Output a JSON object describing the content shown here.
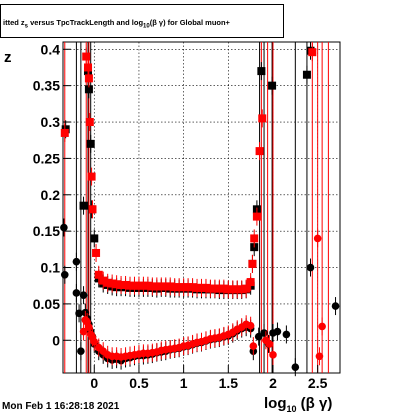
{
  "title": "itted  z_{s} versus TpcTrackLength and log_{10}(βγ) for Global muon+",
  "datestamp": "Mon Feb  1 16:28:18 2021",
  "chart_data": {
    "type": "scatter",
    "title": "itted  z_{s} versus TpcTrackLength and log_{10}(βγ) for Global muon+",
    "xlabel": "log10(β γ)",
    "ylabel": "z",
    "xlim": [
      -0.35,
      2.75
    ],
    "ylim": [
      -0.045,
      0.41
    ],
    "x_ticks": [
      {
        "v": 0,
        "label": "0"
      },
      {
        "v": 0.5,
        "label": "0.5"
      },
      {
        "v": 1,
        "label": "1"
      },
      {
        "v": 1.5,
        "label": "1.5"
      },
      {
        "v": 2,
        "label": "2"
      },
      {
        "v": 2.5,
        "label": "2.5"
      }
    ],
    "y_ticks": [
      {
        "v": 0,
        "label": "0"
      },
      {
        "v": 0.05,
        "label": "0.05"
      },
      {
        "v": 0.1,
        "label": "0.1"
      },
      {
        "v": 0.15,
        "label": "0.15"
      },
      {
        "v": 0.2,
        "label": "0.2"
      },
      {
        "v": 0.25,
        "label": "0.25"
      },
      {
        "v": 0.3,
        "label": "0.3"
      },
      {
        "v": 0.35,
        "label": "0.35"
      },
      {
        "v": 0.4,
        "label": "0.4"
      }
    ],
    "grid": true,
    "series": [
      {
        "marker": "square",
        "color": "#000000",
        "points": [
          [
            -0.32,
            0.29
          ],
          [
            -0.12,
            0.185
          ],
          [
            -0.07,
            0.37
          ],
          [
            -0.06,
            0.345
          ],
          [
            -0.04,
            0.27
          ],
          [
            -0.03,
            0.18
          ],
          [
            0.0,
            0.14
          ],
          [
            0.05,
            0.085
          ],
          [
            0.1,
            0.078
          ],
          [
            0.15,
            0.076
          ],
          [
            0.2,
            0.074
          ],
          [
            0.25,
            0.073
          ],
          [
            0.3,
            0.073
          ],
          [
            0.35,
            0.073
          ],
          [
            0.4,
            0.072
          ],
          [
            0.45,
            0.072
          ],
          [
            0.5,
            0.072
          ],
          [
            0.55,
            0.072
          ],
          [
            0.6,
            0.072
          ],
          [
            0.65,
            0.072
          ],
          [
            0.7,
            0.071
          ],
          [
            0.75,
            0.072
          ],
          [
            0.8,
            0.072
          ],
          [
            0.85,
            0.071
          ],
          [
            0.9,
            0.071
          ],
          [
            0.95,
            0.071
          ],
          [
            1.0,
            0.071
          ],
          [
            1.05,
            0.071
          ],
          [
            1.1,
            0.071
          ],
          [
            1.15,
            0.07
          ],
          [
            1.2,
            0.07
          ],
          [
            1.25,
            0.07
          ],
          [
            1.3,
            0.07
          ],
          [
            1.35,
            0.07
          ],
          [
            1.4,
            0.069
          ],
          [
            1.45,
            0.069
          ],
          [
            1.5,
            0.069
          ],
          [
            1.55,
            0.069
          ],
          [
            1.6,
            0.069
          ],
          [
            1.65,
            0.069
          ],
          [
            1.7,
            0.07
          ],
          [
            1.75,
            0.075
          ],
          [
            1.77,
            0.105
          ],
          [
            1.79,
            0.128
          ],
          [
            1.82,
            0.18
          ],
          [
            1.87,
            0.37
          ],
          [
            1.99,
            0.35
          ],
          [
            2.38,
            0.365
          ],
          [
            2.42,
            0.398
          ]
        ]
      },
      {
        "marker": "square",
        "color": "#ff0000",
        "points": [
          [
            -0.33,
            0.285
          ],
          [
            -0.09,
            0.39
          ],
          [
            -0.07,
            0.375
          ],
          [
            -0.06,
            0.36
          ],
          [
            -0.05,
            0.3
          ],
          [
            -0.03,
            0.225
          ],
          [
            -0.02,
            0.18
          ],
          [
            0.02,
            0.12
          ],
          [
            0.05,
            0.09
          ],
          [
            0.1,
            0.082
          ],
          [
            0.15,
            0.079
          ],
          [
            0.2,
            0.078
          ],
          [
            0.25,
            0.077
          ],
          [
            0.3,
            0.076
          ],
          [
            0.35,
            0.076
          ],
          [
            0.4,
            0.075
          ],
          [
            0.45,
            0.075
          ],
          [
            0.5,
            0.075
          ],
          [
            0.55,
            0.075
          ],
          [
            0.6,
            0.075
          ],
          [
            0.65,
            0.074
          ],
          [
            0.7,
            0.074
          ],
          [
            0.75,
            0.074
          ],
          [
            0.8,
            0.074
          ],
          [
            0.85,
            0.074
          ],
          [
            0.9,
            0.073
          ],
          [
            0.95,
            0.073
          ],
          [
            1.0,
            0.073
          ],
          [
            1.05,
            0.073
          ],
          [
            1.1,
            0.073
          ],
          [
            1.15,
            0.072
          ],
          [
            1.2,
            0.072
          ],
          [
            1.25,
            0.072
          ],
          [
            1.3,
            0.071
          ],
          [
            1.35,
            0.071
          ],
          [
            1.4,
            0.071
          ],
          [
            1.45,
            0.071
          ],
          [
            1.5,
            0.07
          ],
          [
            1.55,
            0.07
          ],
          [
            1.6,
            0.07
          ],
          [
            1.65,
            0.07
          ],
          [
            1.7,
            0.071
          ],
          [
            1.75,
            0.08
          ],
          [
            1.77,
            0.105
          ],
          [
            1.79,
            0.14
          ],
          [
            1.82,
            0.17
          ],
          [
            1.85,
            0.26
          ],
          [
            1.88,
            0.305
          ],
          [
            2.44,
            0.396
          ]
        ]
      },
      {
        "marker": "circle",
        "color": "#000000",
        "points": [
          [
            -0.34,
            0.155
          ],
          [
            -0.33,
            0.09
          ],
          [
            -0.2,
            0.108
          ],
          [
            -0.2,
            0.065
          ],
          [
            -0.17,
            0.037
          ],
          [
            -0.15,
            -0.015
          ],
          [
            -0.12,
            0.062
          ],
          [
            -0.1,
            0.038
          ],
          [
            -0.08,
            0.03
          ],
          [
            -0.06,
            0.022
          ],
          [
            -0.04,
            0.012
          ],
          [
            -0.02,
            0.005
          ],
          [
            0.0,
            -0.005
          ],
          [
            0.05,
            -0.015
          ],
          [
            0.1,
            -0.02
          ],
          [
            0.15,
            -0.025
          ],
          [
            0.2,
            -0.027
          ],
          [
            0.25,
            -0.026
          ],
          [
            0.3,
            -0.028
          ],
          [
            0.35,
            -0.025
          ],
          [
            0.4,
            -0.024
          ],
          [
            0.45,
            -0.022
          ],
          [
            0.5,
            -0.021
          ],
          [
            0.55,
            -0.021
          ],
          [
            0.6,
            -0.02
          ],
          [
            0.65,
            -0.019
          ],
          [
            0.7,
            -0.017
          ],
          [
            0.75,
            -0.016
          ],
          [
            0.8,
            -0.015
          ],
          [
            0.85,
            -0.013
          ],
          [
            0.9,
            -0.012
          ],
          [
            0.95,
            -0.011
          ],
          [
            1.0,
            -0.009
          ],
          [
            1.05,
            -0.008
          ],
          [
            1.1,
            -0.006
          ],
          [
            1.15,
            -0.004
          ],
          [
            1.2,
            -0.003
          ],
          [
            1.25,
            -0.001
          ],
          [
            1.3,
            0.001
          ],
          [
            1.35,
            0.002
          ],
          [
            1.4,
            0.003
          ],
          [
            1.45,
            0.005
          ],
          [
            1.5,
            0.006
          ],
          [
            1.55,
            0.009
          ],
          [
            1.6,
            0.013
          ],
          [
            1.65,
            0.016
          ],
          [
            1.7,
            0.018
          ],
          [
            1.75,
            0.016
          ],
          [
            1.78,
            -0.015
          ],
          [
            1.84,
            0.005
          ],
          [
            1.9,
            0.01
          ],
          [
            1.95,
            -0.005
          ],
          [
            2.0,
            0.01
          ],
          [
            2.05,
            0.012
          ],
          [
            2.15,
            0.008
          ],
          [
            2.25,
            -0.037
          ],
          [
            2.42,
            0.1
          ],
          [
            2.7,
            0.047
          ]
        ]
      },
      {
        "marker": "circle",
        "color": "#ff0000",
        "points": [
          [
            -0.12,
            0.012
          ],
          [
            -0.1,
            0.028
          ],
          [
            -0.08,
            0.025
          ],
          [
            -0.06,
            0.018
          ],
          [
            -0.04,
            0.008
          ],
          [
            -0.02,
            0.004
          ],
          [
            0.0,
            -0.002
          ],
          [
            0.05,
            -0.01
          ],
          [
            0.1,
            -0.015
          ],
          [
            0.15,
            -0.02
          ],
          [
            0.2,
            -0.022
          ],
          [
            0.25,
            -0.022
          ],
          [
            0.3,
            -0.023
          ],
          [
            0.35,
            -0.022
          ],
          [
            0.4,
            -0.021
          ],
          [
            0.45,
            -0.02
          ],
          [
            0.5,
            -0.019
          ],
          [
            0.55,
            -0.018
          ],
          [
            0.6,
            -0.018
          ],
          [
            0.65,
            -0.017
          ],
          [
            0.7,
            -0.016
          ],
          [
            0.75,
            -0.014
          ],
          [
            0.8,
            -0.013
          ],
          [
            0.85,
            -0.012
          ],
          [
            0.9,
            -0.011
          ],
          [
            0.95,
            -0.01
          ],
          [
            1.0,
            -0.008
          ],
          [
            1.05,
            -0.007
          ],
          [
            1.1,
            -0.005
          ],
          [
            1.15,
            -0.003
          ],
          [
            1.2,
            -0.002
          ],
          [
            1.25,
            0.0
          ],
          [
            1.3,
            0.002
          ],
          [
            1.35,
            0.003
          ],
          [
            1.4,
            0.004
          ],
          [
            1.45,
            0.006
          ],
          [
            1.5,
            0.008
          ],
          [
            1.55,
            0.011
          ],
          [
            1.6,
            0.015
          ],
          [
            1.65,
            0.018
          ],
          [
            1.7,
            0.022
          ],
          [
            1.75,
            0.02
          ],
          [
            1.78,
            -0.008
          ],
          [
            1.92,
            0.0
          ],
          [
            1.96,
            -0.005
          ],
          [
            2.0,
            -0.02
          ],
          [
            2.5,
            0.14
          ],
          [
            2.52,
            -0.022
          ],
          [
            2.55,
            0.019
          ]
        ]
      }
    ],
    "vertical_spans": [
      {
        "x": -0.33,
        "color": "#ff0000"
      },
      {
        "x": -0.2,
        "color": "#000000"
      },
      {
        "x": -0.15,
        "color": "#000000"
      },
      {
        "x": -0.09,
        "color": "#ff0000"
      },
      {
        "x": -0.07,
        "color": "#000000"
      },
      {
        "x": -0.06,
        "color": "#ff0000"
      },
      {
        "x": -0.04,
        "color": "#000000"
      },
      {
        "x": 1.85,
        "color": "#000000"
      },
      {
        "x": 1.87,
        "color": "#ff0000"
      },
      {
        "x": 1.9,
        "color": "#000000"
      },
      {
        "x": 1.94,
        "color": "#ff0000"
      },
      {
        "x": 1.99,
        "color": "#000000"
      },
      {
        "x": 2.0,
        "color": "#ff0000"
      },
      {
        "x": 2.25,
        "color": "#000000"
      },
      {
        "x": 2.38,
        "color": "#000000"
      },
      {
        "x": 2.44,
        "color": "#ff0000"
      },
      {
        "x": 2.5,
        "color": "#ff0000"
      },
      {
        "x": 2.55,
        "color": "#ff0000"
      },
      {
        "x": 2.62,
        "color": "#ff0000"
      }
    ]
  }
}
